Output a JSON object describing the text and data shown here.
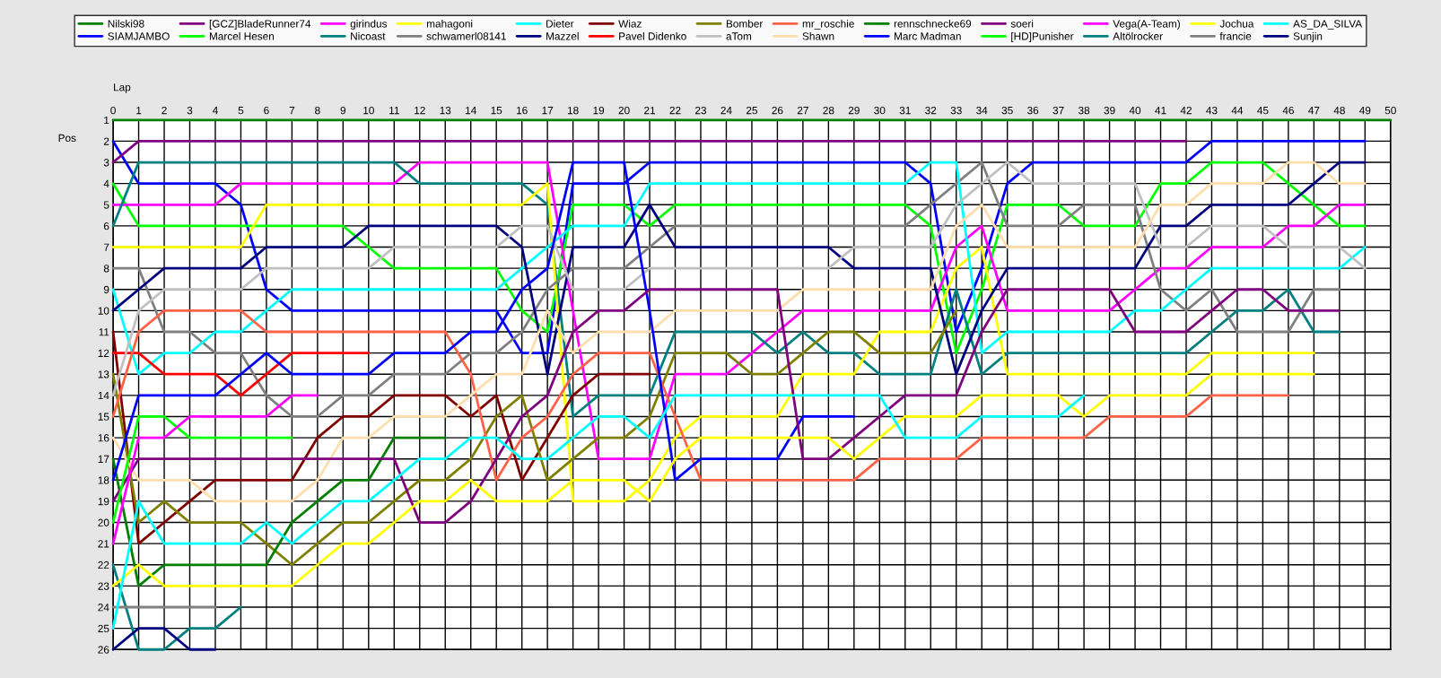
{
  "chart_data": {
    "type": "line",
    "xlabel": "Lap",
    "ylabel": "Pos",
    "x": [
      0,
      1,
      2,
      3,
      4,
      5,
      6,
      7,
      8,
      9,
      10,
      11,
      12,
      13,
      14,
      15,
      16,
      17,
      18,
      19,
      20,
      21,
      22,
      23,
      24,
      25,
      26,
      27,
      28,
      29,
      30,
      31,
      32,
      33,
      34,
      35,
      36,
      37,
      38,
      39,
      40,
      41,
      42,
      43,
      44,
      45,
      46,
      47,
      48,
      49,
      50
    ],
    "xlim": [
      0,
      50
    ],
    "xticks": [
      0,
      1,
      2,
      3,
      4,
      5,
      6,
      7,
      8,
      9,
      10,
      11,
      12,
      13,
      14,
      15,
      16,
      17,
      18,
      19,
      20,
      21,
      22,
      23,
      24,
      25,
      26,
      27,
      28,
      29,
      30,
      31,
      32,
      33,
      34,
      35,
      36,
      37,
      38,
      39,
      40,
      41,
      42,
      43,
      44,
      45,
      46,
      47,
      48,
      49,
      50
    ],
    "ylim": [
      26,
      1
    ],
    "yticks": [
      1,
      2,
      3,
      4,
      5,
      6,
      7,
      8,
      9,
      10,
      11,
      12,
      13,
      14,
      15,
      16,
      17,
      18,
      19,
      20,
      21,
      22,
      23,
      24,
      25,
      26
    ],
    "grid": true,
    "legend": "top",
    "line_style": "solid",
    "series": [
      {
        "name": "Nilski98",
        "color": "#008000",
        "values": [
          1,
          1,
          1,
          1,
          1,
          1,
          1,
          1,
          1,
          1,
          1,
          1,
          1,
          1,
          1,
          1,
          1,
          1,
          1,
          1,
          1,
          1,
          1,
          1,
          1,
          1,
          1,
          1,
          1,
          1,
          1,
          1,
          1,
          1,
          1,
          1,
          1,
          1,
          1,
          1,
          1,
          1,
          1,
          1,
          1,
          1,
          1,
          1,
          1,
          1,
          1
        ]
      },
      {
        "name": "SIAMJAMBO",
        "color": "#0000ff",
        "values": [
          2,
          4,
          4,
          4,
          4,
          5,
          9,
          10,
          10,
          10,
          10,
          10,
          10,
          10,
          10,
          10,
          12,
          12,
          4,
          4,
          4,
          3,
          3,
          3,
          3,
          3,
          3,
          3,
          3,
          3,
          3,
          3,
          4,
          11,
          8,
          4,
          3,
          3,
          3,
          3,
          3,
          3,
          3,
          2,
          2,
          2,
          2,
          2,
          2,
          2,
          null
        ]
      },
      {
        "name": "[GCZ]BladeRunner74",
        "color": "#800080",
        "values": [
          3,
          2,
          2,
          2,
          2,
          2,
          2,
          2,
          2,
          2,
          2,
          2,
          2,
          2,
          2,
          2,
          2,
          2,
          2,
          2,
          2,
          2,
          2,
          2,
          2,
          2,
          2,
          2,
          2,
          2,
          2,
          2,
          2,
          2,
          2,
          2,
          2,
          2,
          2,
          2,
          2,
          2,
          2,
          null,
          null,
          null,
          null,
          null,
          null,
          null,
          null
        ]
      },
      {
        "name": "Marcel Hesen",
        "color": "#00ff00",
        "values": [
          4,
          6,
          6,
          6,
          6,
          6,
          6,
          6,
          6,
          6,
          7,
          8,
          8,
          8,
          8,
          8,
          10,
          11,
          5,
          5,
          5,
          6,
          5,
          5,
          5,
          5,
          5,
          5,
          5,
          5,
          5,
          5,
          6,
          12,
          9,
          5,
          5,
          5,
          6,
          6,
          6,
          4,
          4,
          3,
          3,
          3,
          4,
          5,
          6,
          6,
          null
        ]
      },
      {
        "name": "girindus",
        "color": "#ff00ff",
        "values": [
          5,
          5,
          5,
          5,
          5,
          4,
          4,
          4,
          4,
          4,
          4,
          4,
          3,
          3,
          3,
          3,
          3,
          3,
          10,
          17,
          17,
          17,
          13,
          13,
          13,
          12,
          11,
          10,
          10,
          10,
          10,
          10,
          10,
          7,
          6,
          10,
          10,
          10,
          10,
          10,
          9,
          8,
          8,
          7,
          7,
          7,
          6,
          6,
          5,
          5,
          null
        ]
      },
      {
        "name": "Nicoast",
        "color": "#008080",
        "values": [
          6,
          3,
          3,
          3,
          3,
          3,
          3,
          3,
          3,
          3,
          3,
          3,
          4,
          4,
          4,
          4,
          4,
          5,
          15,
          14,
          14,
          14,
          11,
          11,
          11,
          11,
          12,
          11,
          12,
          12,
          13,
          13,
          13,
          9,
          13,
          12,
          12,
          12,
          12,
          12,
          12,
          12,
          12,
          11,
          10,
          10,
          9,
          11,
          11,
          null,
          null
        ]
      },
      {
        "name": "mahagoni",
        "color": "#ffff00",
        "values": [
          7,
          7,
          7,
          7,
          7,
          7,
          5,
          5,
          5,
          5,
          5,
          5,
          5,
          5,
          5,
          5,
          5,
          4,
          19,
          19,
          19,
          18,
          16,
          15,
          15,
          15,
          15,
          13,
          13,
          13,
          11,
          11,
          11,
          8,
          7,
          13,
          13,
          13,
          13,
          13,
          13,
          13,
          13,
          12,
          12,
          12,
          12,
          12,
          null,
          null,
          null
        ]
      },
      {
        "name": "schwamerl08141",
        "color": "#808080",
        "values": [
          8,
          8,
          11,
          11,
          12,
          12,
          14,
          15,
          15,
          14,
          14,
          13,
          13,
          13,
          12,
          12,
          11,
          9,
          8,
          8,
          8,
          7,
          6,
          6,
          6,
          6,
          6,
          6,
          6,
          6,
          6,
          6,
          5,
          4,
          3,
          6,
          6,
          6,
          5,
          5,
          5,
          9,
          10,
          9,
          11,
          11,
          11,
          9,
          9,
          null,
          null
        ]
      },
      {
        "name": "Dieter",
        "color": "#00ffff",
        "values": [
          9,
          13,
          12,
          12,
          11,
          11,
          10,
          9,
          9,
          9,
          9,
          9,
          9,
          9,
          9,
          9,
          8,
          7,
          6,
          6,
          6,
          4,
          4,
          4,
          4,
          4,
          4,
          4,
          4,
          4,
          4,
          4,
          3,
          3,
          12,
          11,
          11,
          11,
          11,
          11,
          10,
          10,
          9,
          8,
          8,
          8,
          8,
          8,
          8,
          7,
          null
        ]
      },
      {
        "name": "Mazzel",
        "color": "#000080",
        "values": [
          10,
          9,
          8,
          8,
          8,
          8,
          7,
          7,
          7,
          7,
          6,
          6,
          6,
          6,
          6,
          6,
          7,
          13,
          7,
          7,
          7,
          5,
          7,
          7,
          7,
          7,
          7,
          7,
          7,
          8,
          8,
          8,
          8,
          13,
          10,
          8,
          8,
          8,
          8,
          8,
          8,
          6,
          6,
          5,
          5,
          5,
          5,
          4,
          3,
          3,
          null
        ]
      },
      {
        "name": "Wiaz",
        "color": "#800000",
        "values": [
          11,
          21,
          20,
          19,
          18,
          18,
          18,
          18,
          16,
          15,
          15,
          14,
          14,
          14,
          15,
          14,
          18,
          16,
          14,
          13,
          13,
          13,
          null,
          null,
          null,
          null,
          null,
          null,
          null,
          null,
          null,
          null,
          null,
          null,
          null,
          null,
          null,
          null,
          null,
          null,
          null,
          null,
          null,
          null,
          null,
          null,
          null,
          null,
          null,
          null,
          null
        ]
      },
      {
        "name": "Pavel Didenko",
        "color": "#ff0000",
        "values": [
          12,
          12,
          13,
          13,
          13,
          14,
          13,
          12,
          12,
          12,
          12,
          null,
          null,
          null,
          null,
          null,
          null,
          null,
          null,
          null,
          null,
          null,
          null,
          null,
          null,
          null,
          null,
          null,
          null,
          null,
          null,
          null,
          null,
          null,
          null,
          null,
          null,
          null,
          null,
          null,
          null,
          null,
          null,
          null,
          null,
          null,
          null,
          null,
          null,
          null,
          null
        ]
      },
      {
        "name": "Bomber",
        "color": "#808000",
        "values": [
          13,
          20,
          19,
          20,
          20,
          20,
          21,
          22,
          21,
          20,
          20,
          19,
          18,
          18,
          17,
          15,
          14,
          18,
          17,
          16,
          16,
          15,
          12,
          12,
          12,
          13,
          13,
          12,
          11,
          11,
          12,
          12,
          12,
          10,
          null,
          null,
          null,
          null,
          null,
          null,
          null,
          null,
          null,
          null,
          null,
          null,
          null,
          null,
          null,
          null,
          null
        ]
      },
      {
        "name": "aTom",
        "color": "#c0c0c0",
        "values": [
          14,
          10,
          9,
          9,
          9,
          9,
          8,
          8,
          8,
          8,
          8,
          7,
          7,
          7,
          7,
          7,
          6,
          6,
          9,
          9,
          9,
          8,
          8,
          8,
          8,
          8,
          8,
          8,
          8,
          7,
          7,
          7,
          7,
          5,
          4,
          3,
          4,
          4,
          4,
          4,
          4,
          7,
          7,
          6,
          6,
          6,
          7,
          7,
          7,
          8,
          null
        ]
      },
      {
        "name": "mr_roschie",
        "color": "#ff6347",
        "values": [
          15,
          11,
          10,
          10,
          10,
          10,
          11,
          11,
          11,
          11,
          11,
          11,
          11,
          11,
          13,
          18,
          16,
          15,
          13,
          12,
          12,
          12,
          15,
          18,
          18,
          18,
          18,
          18,
          18,
          18,
          17,
          17,
          17,
          17,
          16,
          16,
          16,
          16,
          16,
          15,
          15,
          15,
          15,
          14,
          14,
          14,
          14,
          null,
          null,
          null,
          null
        ]
      },
      {
        "name": "Shawn",
        "color": "#ffdead",
        "values": [
          16,
          18,
          18,
          18,
          19,
          19,
          19,
          19,
          18,
          16,
          16,
          15,
          15,
          15,
          14,
          13,
          13,
          10,
          12,
          11,
          11,
          11,
          10,
          10,
          10,
          10,
          10,
          9,
          9,
          9,
          9,
          9,
          9,
          6,
          5,
          7,
          7,
          7,
          7,
          7,
          7,
          5,
          5,
          4,
          4,
          4,
          3,
          3,
          4,
          4,
          null
        ]
      },
      {
        "name": "rennschnecke69",
        "color": "#008000",
        "values": [
          17,
          23,
          22,
          22,
          22,
          22,
          22,
          20,
          19,
          18,
          18,
          16,
          16,
          16,
          null,
          null,
          null,
          null,
          null,
          null,
          null,
          null,
          null,
          null,
          null,
          null,
          null,
          null,
          null,
          null,
          null,
          null,
          null,
          null,
          null,
          null,
          null,
          null,
          null,
          null,
          null,
          null,
          null,
          null,
          null,
          null,
          null,
          null,
          null,
          null,
          null
        ]
      },
      {
        "name": "Marc Madman",
        "color": "#0000ff",
        "values": [
          18,
          14,
          14,
          14,
          14,
          13,
          12,
          13,
          13,
          13,
          13,
          12,
          12,
          12,
          11,
          11,
          9,
          8,
          3,
          3,
          3,
          10,
          18,
          17,
          17,
          17,
          17,
          15,
          15,
          15,
          null,
          null,
          null,
          null,
          null,
          null,
          null,
          null,
          null,
          null,
          null,
          null,
          null,
          null,
          null,
          null,
          null,
          null,
          null,
          null,
          null
        ]
      },
      {
        "name": "soeri",
        "color": "#800080",
        "values": [
          19,
          17,
          17,
          17,
          17,
          17,
          17,
          17,
          17,
          17,
          17,
          17,
          20,
          20,
          19,
          17,
          15,
          14,
          11,
          10,
          10,
          9,
          9,
          9,
          9,
          9,
          9,
          17,
          17,
          16,
          15,
          14,
          14,
          14,
          11,
          9,
          9,
          9,
          9,
          9,
          11,
          11,
          11,
          10,
          9,
          9,
          10,
          10,
          10,
          null,
          null
        ]
      },
      {
        "name": "[HD]Punisher",
        "color": "#00ff00",
        "values": [
          20,
          15,
          15,
          16,
          16,
          16,
          16,
          16,
          null,
          null,
          null,
          null,
          null,
          null,
          null,
          null,
          null,
          null,
          null,
          null,
          null,
          null,
          null,
          null,
          null,
          null,
          null,
          null,
          null,
          null,
          null,
          null,
          null,
          null,
          null,
          null,
          null,
          null,
          null,
          null,
          null,
          null,
          null,
          null,
          null,
          null,
          null,
          null,
          null,
          null,
          null
        ]
      },
      {
        "name": "Vega(A-Team)",
        "color": "#ff00ff",
        "values": [
          21,
          16,
          16,
          15,
          15,
          15,
          15,
          14,
          14,
          null,
          null,
          null,
          null,
          null,
          null,
          null,
          null,
          null,
          null,
          null,
          null,
          null,
          null,
          null,
          null,
          null,
          null,
          null,
          null,
          null,
          null,
          null,
          null,
          null,
          null,
          null,
          null,
          null,
          null,
          null,
          null,
          null,
          null,
          null,
          null,
          null,
          null,
          null,
          null,
          null,
          null
        ]
      },
      {
        "name": "Altölrocker",
        "color": "#008080",
        "values": [
          22,
          26,
          26,
          25,
          25,
          24,
          null,
          null,
          null,
          null,
          null,
          null,
          null,
          null,
          null,
          null,
          null,
          null,
          null,
          null,
          null,
          null,
          null,
          null,
          null,
          null,
          null,
          null,
          null,
          null,
          null,
          null,
          null,
          null,
          null,
          null,
          null,
          null,
          null,
          null,
          null,
          null,
          null,
          null,
          null,
          null,
          null,
          null,
          null,
          null,
          null
        ]
      },
      {
        "name": "Jochua",
        "color": "#ffff00",
        "values": [
          23,
          22,
          23,
          23,
          23,
          23,
          23,
          23,
          22,
          21,
          21,
          20,
          19,
          19,
          18,
          19,
          19,
          19,
          18,
          18,
          18,
          19,
          17,
          16,
          16,
          16,
          16,
          16,
          16,
          17,
          16,
          15,
          15,
          15,
          14,
          14,
          14,
          14,
          15,
          14,
          14,
          14,
          14,
          13,
          13,
          13,
          13,
          13,
          null,
          null,
          null
        ]
      },
      {
        "name": "francie",
        "color": "#808080",
        "values": [
          24,
          24,
          24,
          24,
          24,
          null,
          null,
          null,
          null,
          null,
          null,
          null,
          null,
          null,
          null,
          null,
          null,
          null,
          null,
          null,
          null,
          null,
          null,
          null,
          null,
          null,
          null,
          null,
          null,
          null,
          null,
          null,
          null,
          null,
          null,
          null,
          null,
          null,
          null,
          null,
          null,
          null,
          null,
          null,
          null,
          null,
          null,
          null,
          null,
          null,
          null
        ]
      },
      {
        "name": "AS_DA_SILVA",
        "color": "#00ffff",
        "values": [
          25,
          19,
          21,
          21,
          21,
          21,
          20,
          21,
          20,
          19,
          19,
          18,
          17,
          17,
          16,
          16,
          17,
          17,
          16,
          15,
          15,
          16,
          14,
          14,
          14,
          14,
          14,
          14,
          14,
          14,
          14,
          16,
          16,
          16,
          15,
          15,
          15,
          15,
          14,
          null,
          null,
          null,
          null,
          null,
          null,
          null,
          null,
          null,
          null,
          null,
          null
        ]
      },
      {
        "name": "Sunjin",
        "color": "#000080",
        "values": [
          26,
          25,
          25,
          26,
          26,
          null,
          null,
          null,
          null,
          null,
          null,
          null,
          null,
          null,
          null,
          null,
          null,
          null,
          null,
          null,
          null,
          null,
          null,
          null,
          null,
          null,
          null,
          null,
          null,
          null,
          null,
          null,
          null,
          null,
          null,
          null,
          null,
          null,
          null,
          null,
          null,
          null,
          null,
          null,
          null,
          null,
          null,
          null,
          null,
          null,
          null
        ]
      }
    ]
  }
}
